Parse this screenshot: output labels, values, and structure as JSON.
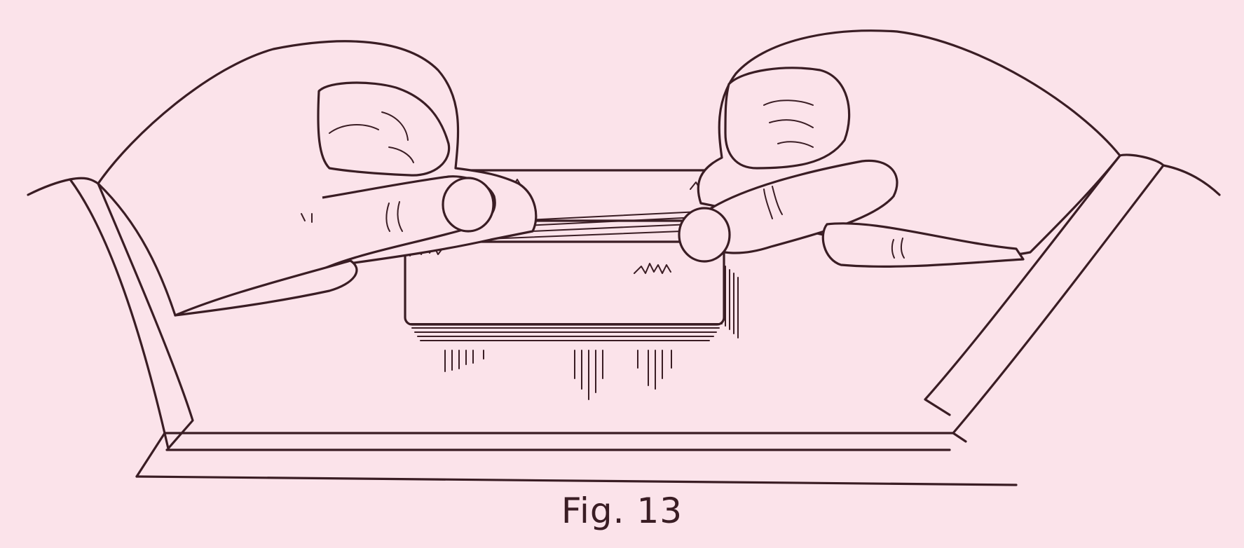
{
  "figure": {
    "caption": "Fig. 13"
  },
  "colors": {
    "paper": "#fbe3ea",
    "ink": "#3a1d24"
  }
}
